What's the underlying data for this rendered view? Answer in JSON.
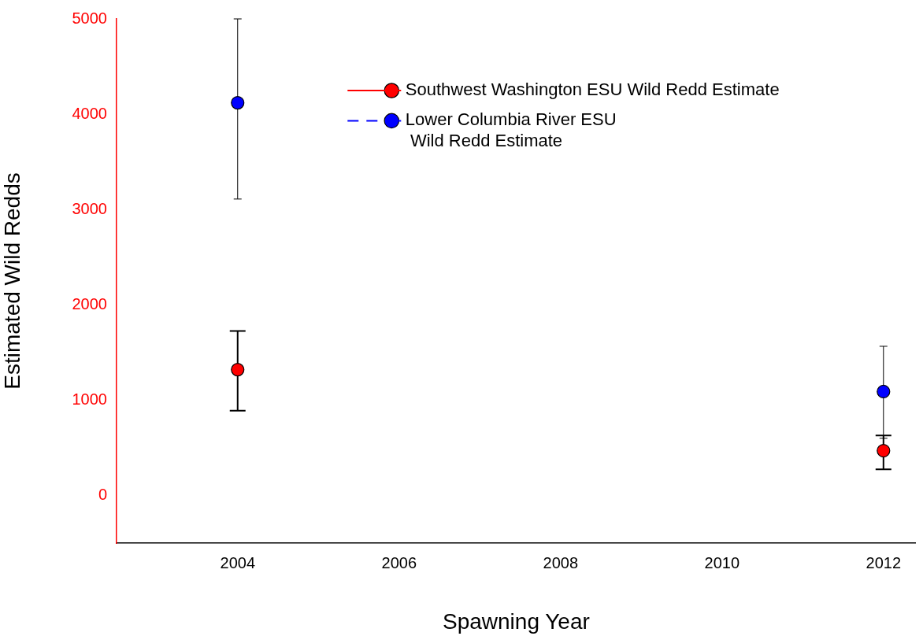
{
  "chart_data": {
    "type": "scatter",
    "xlabel": "Spawning Year",
    "ylabel": "Estimated Wild Redds",
    "x": [
      2004,
      2012
    ],
    "xlim": [
      2002.5,
      2012.4
    ],
    "xticks": [
      2004,
      2006,
      2008,
      2010,
      2012
    ],
    "ylim": [
      -500,
      5000
    ],
    "yticks": [
      0,
      1000,
      2000,
      3000,
      4000,
      5000
    ],
    "grid": false,
    "legend": "top right",
    "marker": "circle",
    "series": [
      {
        "name": "Southwest Washington ESU Wild Redd Estimate",
        "type": "scatter",
        "line_style": "solid",
        "color": "#ff0000",
        "values": [
          1320,
          470
        ],
        "errors": [
          [
            890,
            1725
          ],
          [
            275,
            630
          ]
        ]
      },
      {
        "name": "Lower Columbia River ESU\n Wild Redd Estimate",
        "type": "scatter",
        "line_style": "dashed",
        "color": "#0000ff",
        "values": [
          4120,
          1090
        ],
        "errors": [
          [
            3110,
            5000
          ],
          [
            600,
            1565
          ]
        ]
      }
    ]
  }
}
